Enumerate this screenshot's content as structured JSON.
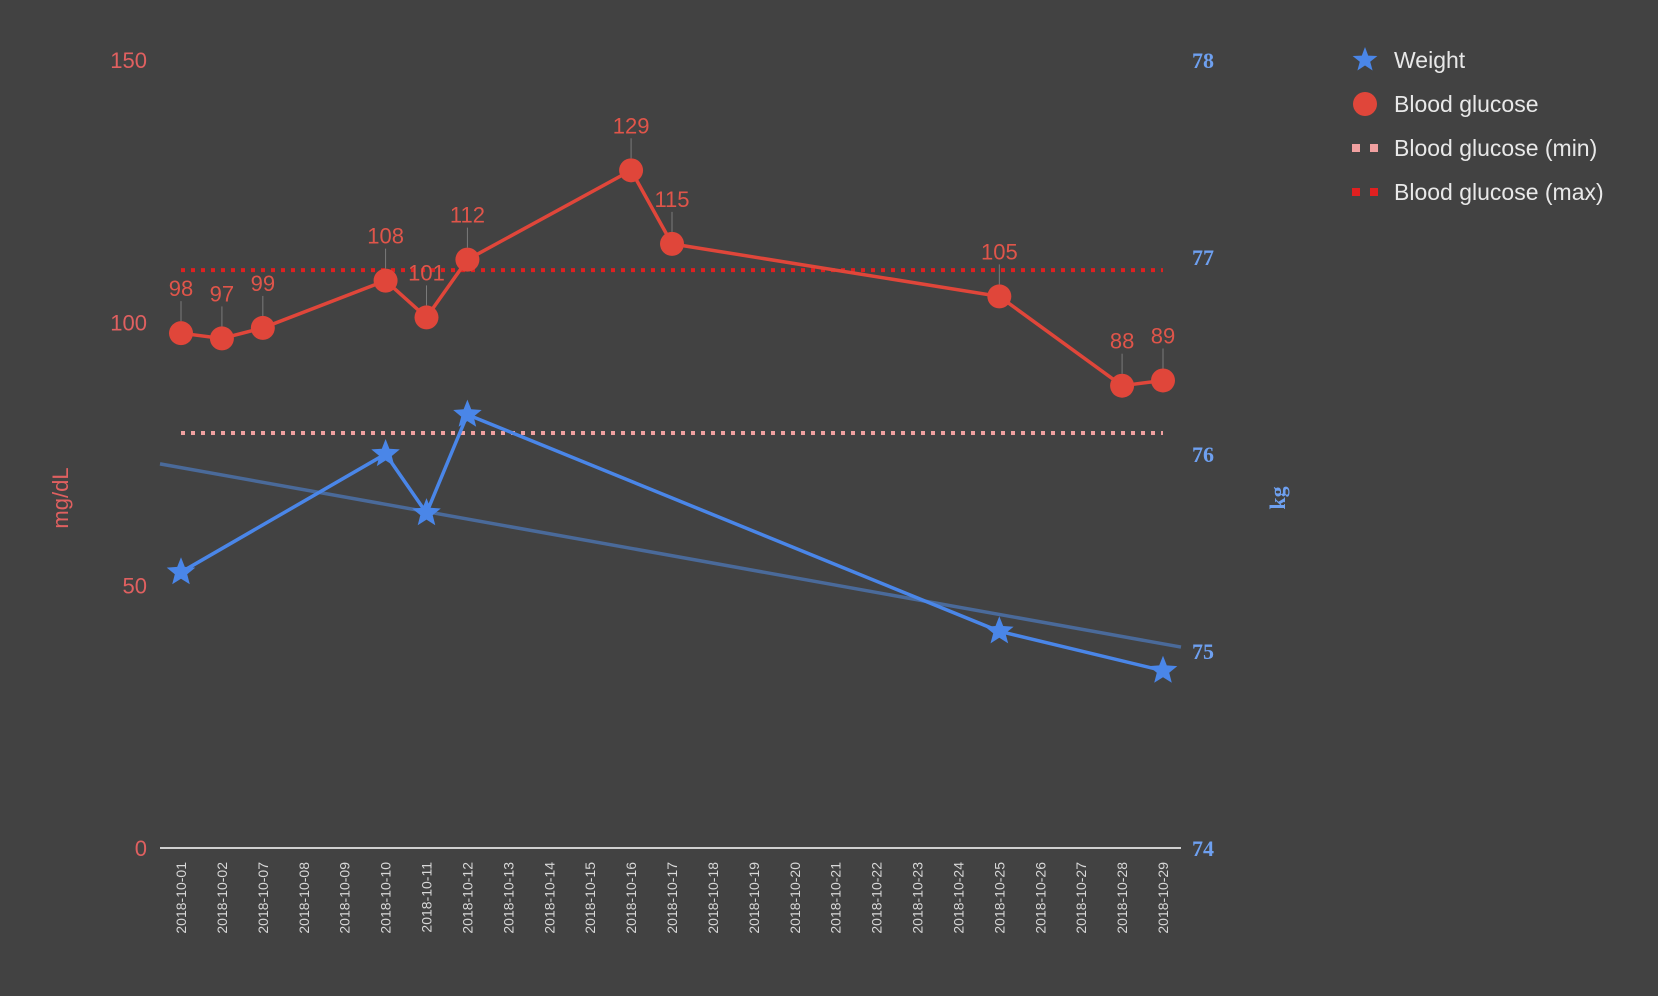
{
  "chart_data": {
    "type": "line",
    "categories": [
      "2018-10-01",
      "2018-10-02",
      "2018-10-07",
      "2018-10-08",
      "2018-10-09",
      "2018-10-10",
      "2018-10-11",
      "2018-10-12",
      "2018-10-13",
      "2018-10-14",
      "2018-10-15",
      "2018-10-16",
      "2018-10-17",
      "2018-10-18",
      "2018-10-19",
      "2018-10-20",
      "2018-10-21",
      "2018-10-22",
      "2018-10-23",
      "2018-10-24",
      "2018-10-25",
      "2018-10-26",
      "2018-10-27",
      "2018-10-28",
      "2018-10-29"
    ],
    "left_axis": {
      "label": "mg/dL",
      "ylim": [
        0,
        150
      ],
      "ticks": [
        "0",
        "50",
        "100",
        "150"
      ],
      "color": "#e06060"
    },
    "right_axis": {
      "label": "kg",
      "ylim": [
        74,
        78
      ],
      "ticks": [
        "74",
        "75",
        "76",
        "77",
        "78"
      ],
      "color": "#6ea0f0"
    },
    "series": [
      {
        "name": "Weight",
        "axis": "right",
        "marker": "star",
        "color": "#4a86e8",
        "points": [
          {
            "x": "2018-10-01",
            "y": 75.4
          },
          {
            "x": "2018-10-10",
            "y": 76.0
          },
          {
            "x": "2018-10-11",
            "y": 75.7
          },
          {
            "x": "2018-10-12",
            "y": 76.2
          },
          {
            "x": "2018-10-25",
            "y": 75.1
          },
          {
            "x": "2018-10-29",
            "y": 74.9
          }
        ],
        "trendline": {
          "color": "#4a6a9a",
          "from": {
            "x": "2018-10-01",
            "y": 75.95
          },
          "to": {
            "x": "2018-10-29",
            "y": 75.02
          }
        }
      },
      {
        "name": "Blood glucose",
        "axis": "left",
        "marker": "circle",
        "color": "#e0463a",
        "points": [
          {
            "x": "2018-10-01",
            "y": 98
          },
          {
            "x": "2018-10-02",
            "y": 97
          },
          {
            "x": "2018-10-07",
            "y": 99
          },
          {
            "x": "2018-10-10",
            "y": 108
          },
          {
            "x": "2018-10-11",
            "y": 101
          },
          {
            "x": "2018-10-12",
            "y": 112
          },
          {
            "x": "2018-10-16",
            "y": 129
          },
          {
            "x": "2018-10-17",
            "y": 115
          },
          {
            "x": "2018-10-25",
            "y": 105
          },
          {
            "x": "2018-10-28",
            "y": 88
          },
          {
            "x": "2018-10-29",
            "y": 89
          }
        ],
        "data_labels": [
          "98",
          "97",
          "99",
          "108",
          "101",
          "112",
          "129",
          "115",
          "105",
          "88",
          "89"
        ]
      },
      {
        "name": "Blood glucose (min)",
        "axis": "left",
        "style": "dotted",
        "color": "#f0a0a0",
        "value": 79
      },
      {
        "name": "Blood glucose (max)",
        "axis": "left",
        "style": "dotted",
        "color": "#e02020",
        "value": 110
      }
    ],
    "legend": {
      "placement": "top-right"
    },
    "grid": false
  }
}
